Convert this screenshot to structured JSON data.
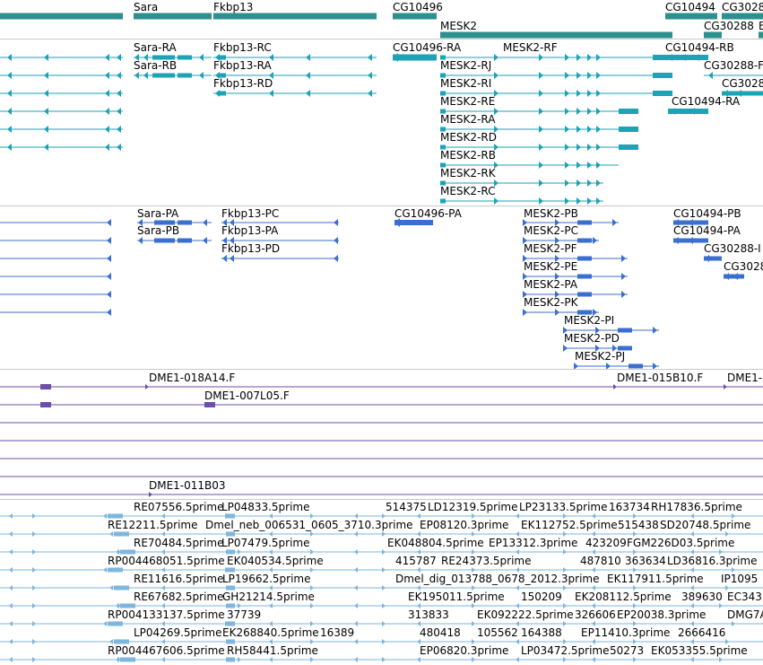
{
  "colors": {
    "gene": "#2e8f8f",
    "transcript_rna": "#1ea2b6",
    "transcript_protein": "#3b6fcf",
    "clone": "#6d4ea8",
    "est": "#7fb6de",
    "separator": "#c8c8c8"
  },
  "tracks": {
    "genes": {
      "labels": [
        "Sara",
        "Fkbp13",
        "CG10496",
        "MESK2",
        "CG10494",
        "CG3028",
        "CG30288",
        "E"
      ]
    },
    "transcripts": {
      "labels": [
        "Sara-RA",
        "Fkbp13-RC",
        "CG10496-RA",
        "MESK2-RF",
        "CG10494-RB",
        "Sara-RB",
        "Fkbp13-RA",
        "MESK2-RJ",
        "CG30288-F",
        "Fkbp13-RD",
        "MESK2-RI",
        "CG3028",
        "MESK2-RE",
        "CG10494-RA",
        "MESK2-RA",
        "MESK2-RD",
        "MESK2-RB",
        "MESK2-RK",
        "MESK2-RC"
      ]
    },
    "proteins": {
      "labels": [
        "Sara-PA",
        "Fkbp13-PC",
        "CG10496-PA",
        "MESK2-PB",
        "CG10494-PB",
        "Sara-PB",
        "Fkbp13-PA",
        "MESK2-PC",
        "CG10494-PA",
        "Fkbp13-PD",
        "MESK2-PF",
        "CG30288-I",
        "MESK2-PE",
        "CG3028",
        "MESK2-PA",
        "MESK2-PK",
        "MESK2-PI",
        "MESK2-PD",
        "MESK2-PJ"
      ]
    },
    "clones": {
      "labels": [
        "DME1-018A14.F",
        "DME1-015B10.F",
        "DME1-",
        "DME1-007L05.F",
        "DME1-011B03"
      ]
    },
    "ests": {
      "labels": [
        "RE07556.5prime",
        "LP04833.5prime",
        "514375",
        "LD12319.5prime",
        "LP23133.5prime",
        "163734",
        "RH17836.5prime",
        "RE12211.5prime",
        "Dmel_neb_006531_0605_3710.3prime",
        "EP08120.3prime",
        "EK112752.5prime",
        "515438",
        "SD20748.5prime",
        "RE70484.5prime",
        "LP07479.5prime",
        "EK048804.5prime",
        "EP13312.3prime",
        "423209",
        "FGM226D03.5prime",
        "RP004468051.5prime",
        "EK040534.5prime",
        "415787",
        "RE24373.5prime",
        "487810",
        "363634",
        "LD36816.3prime",
        "RE11616.5prime",
        "LP19662.5prime",
        "Dmel_dig_013788_0678_2012.3prime",
        "EK117911.5prime",
        "IP1095",
        "RE67682.5prime",
        "GH21214.5prime",
        "EK195011.5prime",
        "150209",
        "EK208112.5prime",
        "389630",
        "EC343",
        "RP004133137.5prime",
        "37739",
        "313833",
        "EK092222.5prime",
        "326606",
        "EP20038.3prime",
        "DMG7A",
        "LP04269.5prime",
        "EK268840.5prime",
        "16389",
        "480418",
        "105562",
        "164388",
        "EP11410.3prime",
        "2666416",
        "RP004467606.5prime",
        "RH58441.5prime",
        "EP06820.3prime",
        "LP03472.5prime",
        "50273",
        "EK053355.5prime"
      ]
    }
  }
}
